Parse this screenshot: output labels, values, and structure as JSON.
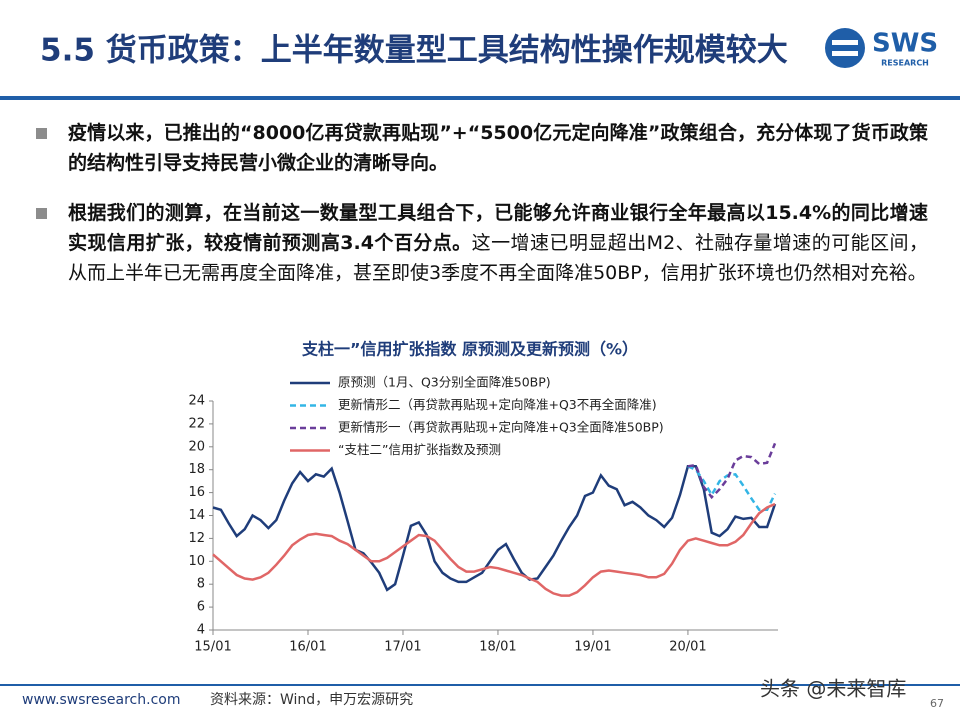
{
  "header": {
    "title": "5.5 货币政策：上半年数量型工具结构性操作规模较大",
    "logo": "SWS",
    "logo_sub": "RESEARCH"
  },
  "bullets": [
    {
      "bold": "疫情以来，已推出的“8000亿再贷款再贴现”+“5500亿元定向降准”政策组合，充分体现了货币政策的结构性引导支持民营小微企业的清晰导向。",
      "normal": ""
    },
    {
      "bold": "根据我们的测算，在当前这一数量型工具组合下，已能够允许商业银行全年最高以15.4%的同比增速实现信用扩张，较疫情前预测高3.4个百分点。",
      "normal": "这一增速已明显超出M2、社融存量增速的可能区间，从而上半年已无需再度全面降准，甚至即使3季度不再全面降准50BP，信用扩张环境也仍然相对充裕。"
    }
  ],
  "chart_data": {
    "type": "line",
    "title": "支柱一”信用扩张指数 原预测及更新预测（%）",
    "categories": [
      "15/01",
      null,
      null,
      null,
      null,
      null,
      null,
      null,
      null,
      null,
      null,
      null,
      "16/01",
      null,
      null,
      null,
      null,
      null,
      null,
      null,
      null,
      null,
      null,
      null,
      "17/01",
      null,
      null,
      null,
      null,
      null,
      null,
      null,
      null,
      null,
      null,
      null,
      "18/01",
      null,
      null,
      null,
      null,
      null,
      null,
      null,
      null,
      null,
      null,
      null,
      "19/01",
      null,
      null,
      null,
      null,
      null,
      null,
      null,
      null,
      null,
      null,
      null,
      "20/01",
      null,
      null,
      null,
      null,
      null,
      null,
      null,
      null,
      null,
      null,
      null
    ],
    "ylim": [
      4,
      24
    ],
    "yticks": [
      4,
      6,
      8,
      10,
      12,
      14,
      16,
      18,
      20,
      22,
      24
    ],
    "grid": false,
    "series": [
      {
        "name": "原预测（1月、Q3分别全面降准50BP)",
        "color": "#1f3d7a",
        "style": "solid",
        "values": [
          14.7,
          14.5,
          13.3,
          12.2,
          12.8,
          14.0,
          13.6,
          12.9,
          13.6,
          15.3,
          16.8,
          17.8,
          17.0,
          17.6,
          17.4,
          18.1,
          16.0,
          13.5,
          11.0,
          10.7,
          9.9,
          9.0,
          7.5,
          8.0,
          10.5,
          13.1,
          13.4,
          12.3,
          10.0,
          9.0,
          8.5,
          8.2,
          8.2,
          8.6,
          9.0,
          10.0,
          11.0,
          11.5,
          10.2,
          9.0,
          8.4,
          8.5,
          9.5,
          10.5,
          11.8,
          13.0,
          14.0,
          15.7,
          16.0,
          17.5,
          16.6,
          16.3,
          14.9,
          15.2,
          14.7,
          14.0,
          13.6,
          13.0,
          13.8,
          15.8,
          18.3,
          18.3,
          16.3,
          12.5,
          12.2,
          12.8,
          13.9,
          13.7,
          13.8,
          13.0,
          13.0,
          15.0
        ]
      },
      {
        "name": "更新情形二（再贷款再贴现+定向降准+Q3不再全面降准)",
        "color": "#33b5e5",
        "style": "dashed",
        "values": [
          null,
          null,
          null,
          null,
          null,
          null,
          null,
          null,
          null,
          null,
          null,
          null,
          null,
          null,
          null,
          null,
          null,
          null,
          null,
          null,
          null,
          null,
          null,
          null,
          null,
          null,
          null,
          null,
          null,
          null,
          null,
          null,
          null,
          null,
          null,
          null,
          null,
          null,
          null,
          null,
          null,
          null,
          null,
          null,
          null,
          null,
          null,
          null,
          null,
          null,
          null,
          null,
          null,
          null,
          null,
          null,
          null,
          null,
          null,
          null,
          18.3,
          18.0,
          17.0,
          15.8,
          17.0,
          17.5,
          17.6,
          16.6,
          15.5,
          14.5,
          14.5,
          15.9
        ]
      },
      {
        "name": "更新情形一（再贷款再贴现+定向降准+Q3全面降准50BP)",
        "color": "#6a3d9a",
        "style": "dashed",
        "values": [
          null,
          null,
          null,
          null,
          null,
          null,
          null,
          null,
          null,
          null,
          null,
          null,
          null,
          null,
          null,
          null,
          null,
          null,
          null,
          null,
          null,
          null,
          null,
          null,
          null,
          null,
          null,
          null,
          null,
          null,
          null,
          null,
          null,
          null,
          null,
          null,
          null,
          null,
          null,
          null,
          null,
          null,
          null,
          null,
          null,
          null,
          null,
          null,
          null,
          null,
          null,
          null,
          null,
          null,
          null,
          null,
          null,
          null,
          null,
          null,
          18.3,
          18.4,
          16.5,
          15.6,
          16.3,
          17.2,
          18.8,
          19.2,
          19.1,
          18.5,
          18.6,
          20.3
        ]
      },
      {
        "name": "“支柱二”信用扩张指数及预测",
        "color": "#e06666",
        "style": "solid",
        "values": [
          10.6,
          10.0,
          9.4,
          8.8,
          8.5,
          8.4,
          8.6,
          9.0,
          9.7,
          10.5,
          11.4,
          11.9,
          12.3,
          12.4,
          12.3,
          12.2,
          11.8,
          11.5,
          11.0,
          10.5,
          10.0,
          10.0,
          10.3,
          10.8,
          11.3,
          11.8,
          12.3,
          12.2,
          11.8,
          11.0,
          10.2,
          9.5,
          9.1,
          9.1,
          9.3,
          9.5,
          9.4,
          9.2,
          9.0,
          8.8,
          8.5,
          8.2,
          7.6,
          7.2,
          7.0,
          7.0,
          7.3,
          7.9,
          8.6,
          9.1,
          9.2,
          9.1,
          9.0,
          8.9,
          8.8,
          8.6,
          8.6,
          8.9,
          9.8,
          11.0,
          11.8,
          12.0,
          11.8,
          11.6,
          11.4,
          11.4,
          11.7,
          12.3,
          13.3,
          14.2,
          14.7,
          15.0
        ]
      }
    ]
  },
  "footer": {
    "url": "www.swsresearch.com",
    "source": "资料来源：Wind，申万宏源研究",
    "page": "67",
    "watermark": "头条 @未来智库"
  }
}
